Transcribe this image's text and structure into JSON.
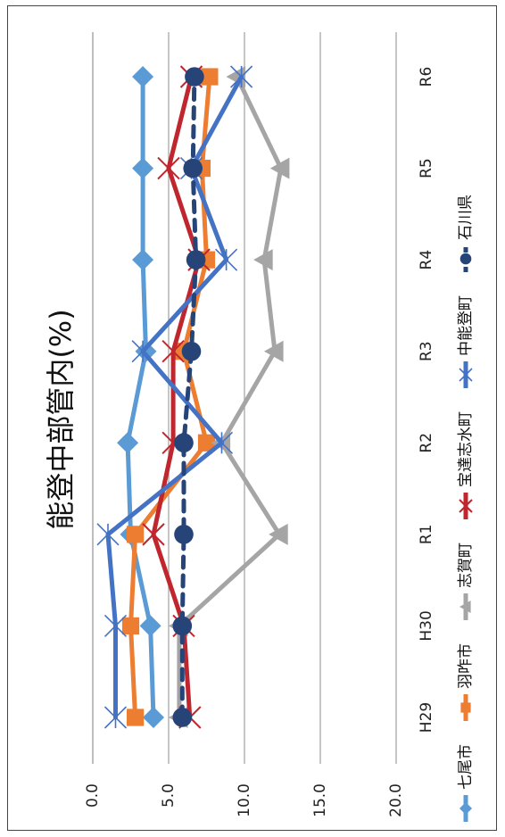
{
  "chart_data": {
    "type": "line",
    "title": "能登中部管内(%)",
    "categories": [
      "H29",
      "H30",
      "R1",
      "R2",
      "R3",
      "R4",
      "R5",
      "R6"
    ],
    "ylim": [
      0,
      20
    ],
    "yticks": [
      "0.0",
      "5.0",
      "10.0",
      "15.0",
      "20.0"
    ],
    "grid": true,
    "legend_position": "bottom",
    "series": [
      {
        "name": "七尾市",
        "color": "#5b9bd5",
        "marker": "diamond",
        "dash": false,
        "values": [
          4.0,
          3.8,
          2.5,
          2.3,
          3.5,
          3.3,
          3.3,
          3.3
        ]
      },
      {
        "name": "羽咋市",
        "color": "#ed7d31",
        "marker": "square",
        "dash": false,
        "values": [
          2.8,
          2.5,
          2.8,
          7.5,
          6.0,
          7.5,
          7.2,
          7.7
        ]
      },
      {
        "name": "志賀町",
        "color": "#a5a5a5",
        "marker": "triangle",
        "dash": false,
        "values": [
          5.7,
          5.7,
          12.3,
          8.5,
          12.0,
          11.3,
          12.4,
          9.5
        ]
      },
      {
        "name": "宝達志水町",
        "color": "#c0262d",
        "marker": "x",
        "dash": false,
        "values": [
          6.4,
          6.0,
          4.0,
          5.3,
          5.3,
          7.0,
          5.0,
          6.5
        ]
      },
      {
        "name": "中能登町",
        "color": "#4472c4",
        "marker": "star",
        "dash": false,
        "values": [
          1.5,
          1.5,
          1.0,
          8.5,
          3.3,
          8.8,
          6.5,
          9.8
        ]
      },
      {
        "name": "石川県",
        "color": "#264478",
        "marker": "circle",
        "dash": true,
        "values": [
          5.9,
          5.9,
          6.0,
          6.0,
          6.5,
          6.8,
          6.6,
          6.7
        ]
      }
    ]
  }
}
